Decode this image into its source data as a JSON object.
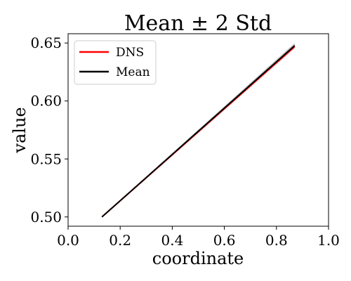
{
  "chart_data": {
    "type": "line",
    "title": "Mean ± 2 Std",
    "xlabel": "coordinate",
    "ylabel": "value",
    "xlim": [
      0.0,
      1.0
    ],
    "ylim": [
      0.492,
      0.658
    ],
    "xticks": [
      0.0,
      0.2,
      0.4,
      0.6,
      0.8,
      1.0
    ],
    "xtick_labels": [
      "0.0",
      "0.2",
      "0.4",
      "0.6",
      "0.8",
      "1.0"
    ],
    "yticks": [
      0.5,
      0.55,
      0.6,
      0.65
    ],
    "ytick_labels": [
      "0.50",
      "0.55",
      "0.60",
      "0.65"
    ],
    "grid": false,
    "legend_position": "top-left",
    "series": [
      {
        "name": "DNS",
        "color": "#ff0000",
        "x": [
          0.13,
          0.87
        ],
        "y": [
          0.5,
          0.6468
        ]
      },
      {
        "name": "Mean",
        "color": "#000000",
        "x": [
          0.13,
          0.87
        ],
        "y": [
          0.5,
          0.6478
        ]
      }
    ],
    "band": {
      "color": "#808080",
      "x": [
        0.13,
        0.87
      ],
      "lower": [
        0.4996,
        0.6455
      ],
      "upper": [
        0.5004,
        0.65
      ]
    }
  }
}
